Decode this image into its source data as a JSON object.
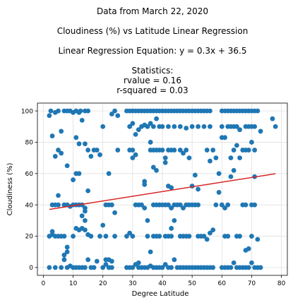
{
  "chart_data": {
    "type": "scatter",
    "title_lines": [
      "Data from March 22, 2020",
      "Cloudiness (%) vs Latitude Linear Regression",
      "Linear Regression Equation: y = 0.3x + 36.5",
      "Statistics:",
      "rvalue = 0.16",
      "r-squared = 0.03"
    ],
    "xlabel": "Degree Latitude",
    "ylabel": "Cloudiness (%)",
    "xlim": [
      -2,
      82
    ],
    "ylim": [
      -5,
      105
    ],
    "xticks": [
      0,
      10,
      20,
      30,
      40,
      50,
      60,
      70,
      80
    ],
    "yticks": [
      0,
      20,
      40,
      60,
      80,
      100
    ],
    "grid": true,
    "point_color": "#1f77b4",
    "line_color": "#d62728",
    "regression": {
      "slope": 0.3,
      "intercept": 36.5,
      "x_range": [
        2,
        78
      ]
    },
    "points": [
      [
        2,
        97
      ],
      [
        2.5,
        100
      ],
      [
        3,
        84
      ],
      [
        4,
        99
      ],
      [
        5,
        100
      ],
      [
        6,
        87
      ],
      [
        7,
        100
      ],
      [
        8,
        100
      ],
      [
        10,
        99
      ],
      [
        11,
        100
      ],
      [
        12,
        99
      ],
      [
        12.5,
        100
      ],
      [
        14,
        100
      ],
      [
        15,
        100
      ],
      [
        11,
        83
      ],
      [
        12,
        79
      ],
      [
        13,
        94
      ],
      [
        14,
        79
      ],
      [
        15,
        75
      ],
      [
        16,
        71
      ],
      [
        17,
        75
      ],
      [
        18,
        75
      ],
      [
        19,
        72
      ],
      [
        4,
        71
      ],
      [
        5,
        75
      ],
      [
        6,
        73
      ],
      [
        9,
        100
      ],
      [
        8,
        65
      ],
      [
        10,
        56
      ],
      [
        11,
        60
      ],
      [
        12,
        60
      ],
      [
        15,
        49
      ],
      [
        5,
        46
      ],
      [
        2,
        20
      ],
      [
        3,
        23
      ],
      [
        3,
        21
      ],
      [
        4,
        20
      ],
      [
        5,
        20
      ],
      [
        6,
        20
      ],
      [
        7,
        20
      ],
      [
        7,
        40
      ],
      [
        5,
        40
      ],
      [
        4,
        40
      ],
      [
        3,
        40
      ],
      [
        8,
        40
      ],
      [
        9,
        39
      ],
      [
        10,
        40
      ],
      [
        11,
        40
      ],
      [
        12,
        40
      ],
      [
        13,
        40
      ],
      [
        14,
        36
      ],
      [
        14,
        38
      ],
      [
        13,
        33
      ],
      [
        14,
        30
      ],
      [
        13,
        25
      ],
      [
        8,
        13
      ],
      [
        7,
        5
      ],
      [
        7,
        8
      ],
      [
        8,
        10
      ],
      [
        9,
        1
      ],
      [
        10,
        0
      ],
      [
        11,
        0
      ],
      [
        12,
        0
      ],
      [
        13,
        0
      ],
      [
        14,
        0
      ],
      [
        15,
        5
      ],
      [
        16,
        0
      ],
      [
        17,
        0
      ],
      [
        18,
        4
      ],
      [
        19,
        20
      ],
      [
        11,
        25
      ],
      [
        12,
        24
      ],
      [
        14,
        24
      ],
      [
        15,
        21
      ],
      [
        10,
        20
      ],
      [
        16,
        20
      ],
      [
        2,
        0
      ],
      [
        4,
        0
      ],
      [
        6,
        0
      ],
      [
        8,
        0
      ],
      [
        20,
        90
      ],
      [
        21,
        20
      ],
      [
        20,
        27
      ],
      [
        21,
        5
      ],
      [
        21,
        2
      ],
      [
        22,
        0
      ],
      [
        22,
        5
      ],
      [
        23,
        0
      ],
      [
        23,
        40
      ],
      [
        22,
        40
      ],
      [
        21,
        40
      ],
      [
        24,
        35
      ],
      [
        25,
        75
      ],
      [
        24,
        100
      ],
      [
        23,
        98
      ],
      [
        25,
        97
      ],
      [
        22,
        60
      ],
      [
        24,
        20
      ],
      [
        23,
        4
      ],
      [
        20,
        0
      ],
      [
        28,
        100
      ],
      [
        29,
        100
      ],
      [
        30,
        100
      ],
      [
        31,
        100
      ],
      [
        32,
        100
      ],
      [
        33,
        100
      ],
      [
        34,
        100
      ],
      [
        35,
        100
      ],
      [
        36,
        100
      ],
      [
        37,
        100
      ],
      [
        38,
        100
      ],
      [
        39,
        100
      ],
      [
        29,
        75
      ],
      [
        30,
        75
      ],
      [
        31,
        72
      ],
      [
        29,
        90
      ],
      [
        30,
        92
      ],
      [
        31,
        85
      ],
      [
        32,
        88
      ],
      [
        33,
        90
      ],
      [
        34,
        91
      ],
      [
        35,
        90
      ],
      [
        36,
        92
      ],
      [
        37,
        90
      ],
      [
        38,
        95
      ],
      [
        39,
        90
      ],
      [
        28,
        20
      ],
      [
        29,
        22
      ],
      [
        30,
        20
      ],
      [
        31,
        40
      ],
      [
        32,
        40
      ],
      [
        33,
        40
      ],
      [
        34,
        38
      ],
      [
        35,
        30
      ],
      [
        35,
        20
      ],
      [
        36,
        10
      ],
      [
        37,
        20
      ],
      [
        38,
        20
      ],
      [
        39,
        20
      ],
      [
        37,
        40
      ],
      [
        38,
        40
      ],
      [
        39,
        40
      ],
      [
        34,
        55
      ],
      [
        34,
        53
      ],
      [
        36,
        75
      ],
      [
        37,
        64
      ],
      [
        38,
        62
      ],
      [
        39,
        75
      ],
      [
        38,
        75
      ],
      [
        37,
        75
      ],
      [
        36,
        80
      ],
      [
        35,
        90
      ],
      [
        30,
        70
      ],
      [
        28,
        0
      ],
      [
        29,
        0
      ],
      [
        30,
        0
      ],
      [
        31,
        2
      ],
      [
        32,
        0
      ],
      [
        33,
        0
      ],
      [
        34,
        0
      ],
      [
        35,
        0
      ],
      [
        36,
        1
      ],
      [
        37,
        0
      ],
      [
        38,
        0
      ],
      [
        39,
        0
      ],
      [
        32,
        3
      ],
      [
        40,
        100
      ],
      [
        41,
        100
      ],
      [
        42,
        100
      ],
      [
        43,
        100
      ],
      [
        44,
        100
      ],
      [
        45,
        100
      ],
      [
        46,
        100
      ],
      [
        47,
        100
      ],
      [
        48,
        100
      ],
      [
        49,
        100
      ],
      [
        50,
        100
      ],
      [
        51,
        100
      ],
      [
        52,
        100
      ],
      [
        53,
        100
      ],
      [
        54,
        100
      ],
      [
        55,
        100
      ],
      [
        56,
        100
      ],
      [
        40,
        90
      ],
      [
        42,
        90
      ],
      [
        44,
        90
      ],
      [
        46,
        90
      ],
      [
        48,
        89
      ],
      [
        50,
        90
      ],
      [
        52,
        90
      ],
      [
        54,
        90
      ],
      [
        56,
        90
      ],
      [
        40,
        75
      ],
      [
        41,
        70
      ],
      [
        42,
        75
      ],
      [
        43,
        75
      ],
      [
        44,
        75
      ],
      [
        46,
        75
      ],
      [
        47,
        73
      ],
      [
        48,
        75
      ],
      [
        49,
        70
      ],
      [
        41,
        67
      ],
      [
        42,
        52
      ],
      [
        43,
        51
      ],
      [
        40,
        40
      ],
      [
        41,
        40
      ],
      [
        42,
        40
      ],
      [
        43,
        38
      ],
      [
        44,
        40
      ],
      [
        45,
        40
      ],
      [
        46,
        40
      ],
      [
        47,
        38
      ],
      [
        48,
        40
      ],
      [
        49,
        40
      ],
      [
        50,
        40
      ],
      [
        51,
        40
      ],
      [
        52,
        40
      ],
      [
        44,
        30
      ],
      [
        43,
        25
      ],
      [
        41,
        20
      ],
      [
        42,
        20
      ],
      [
        43,
        20
      ],
      [
        46,
        20
      ],
      [
        47,
        20
      ],
      [
        48,
        20
      ],
      [
        49,
        20
      ],
      [
        52,
        20
      ],
      [
        53,
        20
      ],
      [
        54,
        20
      ],
      [
        55,
        18
      ],
      [
        40,
        0
      ],
      [
        41,
        2
      ],
      [
        42,
        0
      ],
      [
        43,
        0
      ],
      [
        44,
        5
      ],
      [
        45,
        0
      ],
      [
        46,
        0
      ],
      [
        47,
        0
      ],
      [
        48,
        0
      ],
      [
        49,
        0
      ],
      [
        50,
        0
      ],
      [
        51,
        0
      ],
      [
        52,
        0
      ],
      [
        53,
        0
      ],
      [
        54,
        0
      ],
      [
        55,
        0
      ],
      [
        56,
        0
      ],
      [
        57,
        0
      ],
      [
        50,
        52
      ],
      [
        51,
        59
      ],
      [
        52,
        50
      ],
      [
        55,
        75
      ],
      [
        56,
        68
      ],
      [
        57,
        75
      ],
      [
        58,
        70
      ],
      [
        57,
        24
      ],
      [
        56,
        22
      ],
      [
        58,
        40
      ],
      [
        59,
        48
      ],
      [
        59,
        60
      ],
      [
        60,
        100
      ],
      [
        61,
        100
      ],
      [
        62,
        100
      ],
      [
        63,
        100
      ],
      [
        64,
        100
      ],
      [
        65,
        100
      ],
      [
        66,
        100
      ],
      [
        67,
        100
      ],
      [
        68,
        100
      ],
      [
        69,
        100
      ],
      [
        70,
        100
      ],
      [
        71,
        100
      ],
      [
        72,
        100
      ],
      [
        60,
        90
      ],
      [
        62,
        90
      ],
      [
        64,
        90
      ],
      [
        65,
        90
      ],
      [
        66,
        88
      ],
      [
        68,
        90
      ],
      [
        69,
        90
      ],
      [
        70,
        90
      ],
      [
        71,
        90
      ],
      [
        63,
        90
      ],
      [
        60,
        83
      ],
      [
        61,
        83
      ],
      [
        63,
        70
      ],
      [
        64,
        75
      ],
      [
        65,
        78
      ],
      [
        66,
        70
      ],
      [
        67,
        75
      ],
      [
        68,
        75
      ],
      [
        69,
        75
      ],
      [
        70,
        80
      ],
      [
        71,
        75
      ],
      [
        60,
        40
      ],
      [
        61,
        38
      ],
      [
        62,
        40
      ],
      [
        63,
        58
      ],
      [
        64,
        62
      ],
      [
        67,
        40
      ],
      [
        68,
        40
      ],
      [
        70,
        40
      ],
      [
        71,
        40
      ],
      [
        71,
        58
      ],
      [
        70,
        20
      ],
      [
        72,
        18
      ],
      [
        61,
        20
      ],
      [
        62,
        20
      ],
      [
        65,
        20
      ],
      [
        66,
        20
      ],
      [
        68,
        11
      ],
      [
        69,
        12
      ],
      [
        60,
        0
      ],
      [
        61,
        0
      ],
      [
        62,
        0
      ],
      [
        63,
        0
      ],
      [
        64,
        3
      ],
      [
        65,
        0
      ],
      [
        66,
        0
      ],
      [
        67,
        0
      ],
      [
        68,
        0
      ],
      [
        69,
        0
      ],
      [
        70,
        3
      ],
      [
        71,
        0
      ],
      [
        72,
        0
      ],
      [
        73,
        0
      ],
      [
        73,
        87
      ],
      [
        77,
        95
      ],
      [
        78,
        90
      ]
    ]
  }
}
